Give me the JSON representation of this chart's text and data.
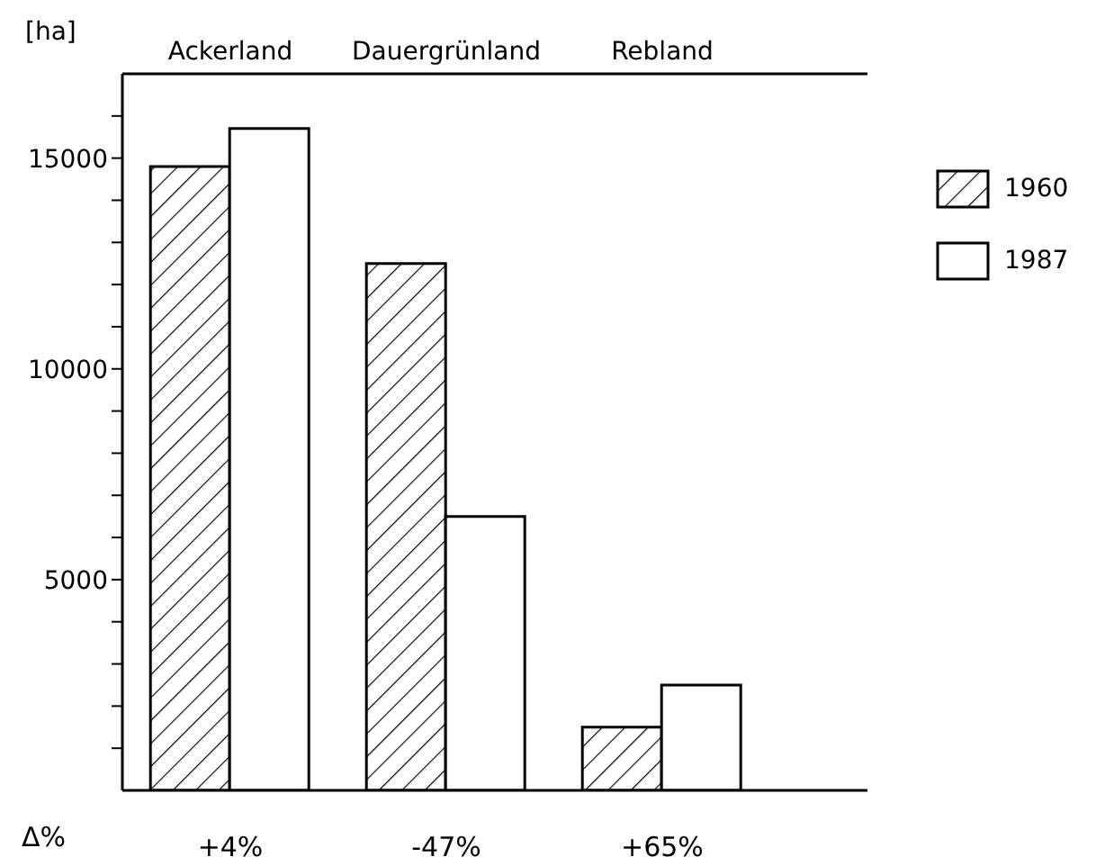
{
  "chart_data": {
    "type": "bar",
    "ylabel": "[ha]",
    "categories": [
      "Ackerland",
      "Dauergrünland",
      "Rebland"
    ],
    "series": [
      {
        "name": "1960",
        "color": "#000000",
        "values": [
          14800,
          12500,
          1500
        ]
      },
      {
        "name": "1987",
        "color": "#ffffff",
        "values": [
          15700,
          6500,
          2500
        ]
      }
    ],
    "ylim": [
      0,
      17000
    ],
    "yticks": [
      {
        "value": 1000,
        "label": null
      },
      {
        "value": 2000,
        "label": null
      },
      {
        "value": 3000,
        "label": null
      },
      {
        "value": 4000,
        "label": null
      },
      5000,
      {
        "value": 6000,
        "label": null
      },
      {
        "value": 7000,
        "label": null
      },
      {
        "value": 8000,
        "label": null
      },
      {
        "value": 9000,
        "label": null
      },
      10000,
      {
        "value": 11000,
        "label": null
      },
      {
        "value": 12000,
        "label": null
      },
      {
        "value": 13000,
        "label": null
      },
      {
        "value": 14000,
        "label": null
      },
      15000,
      {
        "value": 16000,
        "label": null
      }
    ],
    "legend": "right",
    "annotations": [
      "Δ%",
      {
        "text": "+4%",
        "x": "Ackerland",
        "y": 0
      },
      {
        "text": "-47%",
        "x": "Dauergrünland",
        "y": 0
      },
      {
        "text": "+65%",
        "x": "Rebland",
        "y": 0
      }
    ]
  }
}
